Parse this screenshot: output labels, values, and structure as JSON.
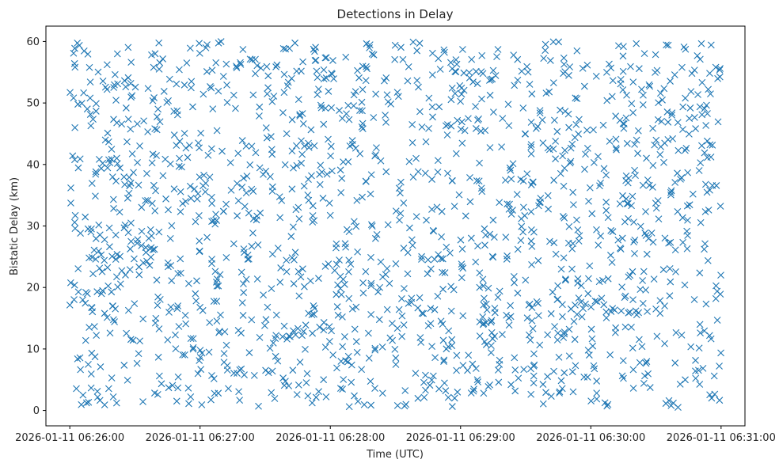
{
  "chart_data": {
    "type": "scatter",
    "title": "Detections in Delay",
    "xlabel": "Time (UTC)",
    "ylabel": "Bistatic Delay (km)",
    "marker": "x",
    "color": "#1f77b4",
    "grid": false,
    "legend": "none",
    "xlim": [
      "2026-01-11 06:25:49",
      "2026-01-11 06:31:11"
    ],
    "ylim": [
      -2.5,
      62.5
    ],
    "xticks": [
      "2026-01-11 06:26:00",
      "2026-01-11 06:27:00",
      "2026-01-11 06:28:00",
      "2026-01-11 06:29:00",
      "2026-01-11 06:30:00",
      "2026-01-11 06:31:00"
    ],
    "yticks": [
      0,
      10,
      20,
      30,
      40,
      50,
      60
    ],
    "clusters": [
      {
        "x": [
          "2026-01-11 06:26:31",
          "2026-01-11 06:26:33",
          "2026-01-11 06:26:35",
          "2026-01-11 06:26:37",
          "2026-01-11 06:26:39"
        ],
        "y": [
          27.2,
          26.8,
          26.5,
          26.3,
          26.2
        ]
      },
      {
        "x": [
          "2026-01-11 06:27:35",
          "2026-01-11 06:27:38",
          "2026-01-11 06:27:41",
          "2026-01-11 06:27:44",
          "2026-01-11 06:27:47"
        ],
        "y": [
          12.2,
          12.0,
          12.1,
          12.3,
          12.2
        ]
      },
      {
        "x": [
          "2026-01-11 06:28:42",
          "2026-01-11 06:28:45",
          "2026-01-11 06:28:48",
          "2026-01-11 06:28:51"
        ],
        "y": [
          24.6,
          24.5,
          24.6,
          24.7
        ]
      },
      {
        "x": [
          "2026-01-11 06:30:02",
          "2026-01-11 06:30:06",
          "2026-01-11 06:30:10",
          "2026-01-11 06:30:14",
          "2026-01-11 06:30:18",
          "2026-01-11 06:30:22",
          "2026-01-11 06:30:26",
          "2026-01-11 06:30:30",
          "2026-01-11 06:30:34"
        ],
        "y": [
          17.8,
          17.2,
          16.6,
          16.2,
          16.0,
          15.9,
          16.1,
          16.5,
          17.0
        ]
      },
      {
        "x": [
          "2026-01-11 06:30:36",
          "2026-01-11 06:30:37",
          "2026-01-11 06:30:38"
        ],
        "y": [
          1.6,
          0.8,
          1.2
        ]
      }
    ],
    "background_noise": {
      "x_range": [
        "2026-01-11 06:26:00",
        "2026-01-11 06:31:00"
      ],
      "y_range": [
        0.5,
        60
      ],
      "approx_count": 1600,
      "distribution": "uniform"
    }
  }
}
